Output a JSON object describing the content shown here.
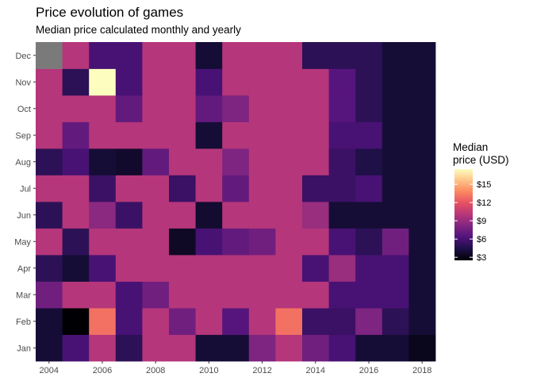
{
  "chart_data": {
    "type": "heatmap",
    "title": "Price evolution of games",
    "subtitle": "Median price calculated monthly and yearly",
    "xlabel": "",
    "ylabel": "",
    "x": [
      2004,
      2005,
      2006,
      2007,
      2008,
      2009,
      2010,
      2011,
      2012,
      2013,
      2014,
      2015,
      2016,
      2017,
      2018
    ],
    "y": [
      "Jan",
      "Feb",
      "Mar",
      "Apr",
      "May",
      "Jun",
      "Jul",
      "Aug",
      "Sep",
      "Oct",
      "Nov",
      "Dec"
    ],
    "x_ticks": [
      "2004",
      "2006",
      "2008",
      "2010",
      "2012",
      "2014",
      "2016",
      "2018"
    ],
    "legend": {
      "title": "Median price (USD)",
      "ticks": [
        "$3",
        "$6",
        "$9",
        "$12",
        "$15"
      ],
      "range": [
        2.5,
        17.5
      ]
    },
    "na_color": "#7a7a7a",
    "values": [
      [
        4.0,
        6.0,
        10.0,
        5.0,
        10.0,
        10.0,
        4.0,
        4.0,
        8.0,
        10.0,
        7.5,
        6.0,
        4.0,
        4.0,
        3.2
      ],
      [
        4.0,
        2.5,
        13.0,
        6.0,
        10.0,
        7.5,
        10.0,
        6.5,
        10.0,
        13.0,
        5.5,
        5.5,
        8.0,
        5.0,
        4.0
      ],
      [
        7.5,
        10.0,
        10.0,
        6.0,
        7.5,
        10.0,
        10.0,
        10.0,
        10.0,
        10.0,
        10.0,
        6.0,
        6.0,
        6.0,
        4.0
      ],
      [
        5.0,
        4.0,
        6.0,
        10.0,
        10.0,
        10.0,
        10.0,
        10.0,
        10.0,
        10.0,
        6.0,
        9.0,
        6.0,
        6.0,
        4.0
      ],
      [
        10.0,
        5.0,
        10.0,
        10.0,
        10.0,
        3.5,
        6.0,
        7.0,
        7.5,
        10.0,
        10.0,
        6.0,
        5.0,
        7.5,
        4.0
      ],
      [
        5.0,
        10.0,
        8.5,
        5.5,
        10.0,
        10.0,
        3.8,
        10.0,
        10.0,
        10.0,
        9.0,
        4.0,
        4.0,
        4.0,
        4.0
      ],
      [
        10.0,
        10.0,
        5.5,
        10.0,
        10.0,
        5.5,
        10.0,
        7.0,
        10.0,
        10.0,
        5.5,
        5.5,
        6.0,
        4.0,
        4.0
      ],
      [
        5.0,
        6.0,
        4.0,
        3.7,
        7.0,
        10.0,
        10.0,
        8.0,
        10.0,
        10.0,
        10.0,
        5.5,
        4.5,
        4.0,
        4.0
      ],
      [
        10.0,
        7.0,
        10.0,
        10.0,
        10.0,
        10.0,
        4.0,
        10.0,
        10.0,
        10.0,
        10.0,
        6.0,
        6.0,
        4.0,
        4.0
      ],
      [
        10.0,
        10.0,
        10.0,
        7.0,
        10.0,
        10.0,
        7.0,
        8.0,
        10.0,
        10.0,
        10.0,
        6.5,
        5.0,
        4.0,
        4.0
      ],
      [
        10.0,
        5.0,
        17.5,
        6.0,
        10.0,
        10.0,
        6.0,
        10.0,
        10.0,
        10.0,
        10.0,
        6.5,
        5.0,
        4.0,
        4.0
      ],
      [
        null,
        10.0,
        6.0,
        6.0,
        10.0,
        10.0,
        4.0,
        10.0,
        10.0,
        10.0,
        5.0,
        5.0,
        5.0,
        4.0,
        4.0
      ]
    ],
    "grid": false
  }
}
